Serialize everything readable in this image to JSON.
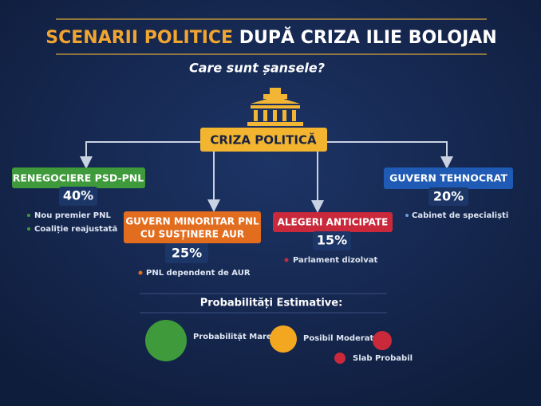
{
  "header": {
    "title_highlight": "SCENARII POLITICE",
    "title_rest": "DUPĂ CRIZA ILIE BOLOJAN",
    "subtitle": "Care sunt șansele?"
  },
  "center": {
    "label": "CRIZA POLITICĂ"
  },
  "nodes": [
    {
      "label": "RENEGOCIERE PSD-PNL",
      "percent": "40%",
      "bullets": [
        "Nou premier PNL",
        "Coaliție reajustată"
      ]
    },
    {
      "label": [
        "GUVERN MINORITAR PNL",
        "CU SUSȚINERE AUR"
      ],
      "percent": "25%",
      "bullets": [
        "PNL dependent de AUR"
      ]
    },
    {
      "label": "ALEGERI ANTICIPATE",
      "percent": "15%",
      "bullets": [
        "Parlament dizolvat"
      ]
    },
    {
      "label": "GUVERN TEHNOCRAT",
      "percent": "20%",
      "bullets": [
        "Cabinet de specialiști"
      ]
    }
  ],
  "legend": {
    "title": "Probabilități Estimative:",
    "items": [
      "Probabilitặt Mare",
      "Posibil Moderat",
      "Slab Probabil"
    ]
  }
}
